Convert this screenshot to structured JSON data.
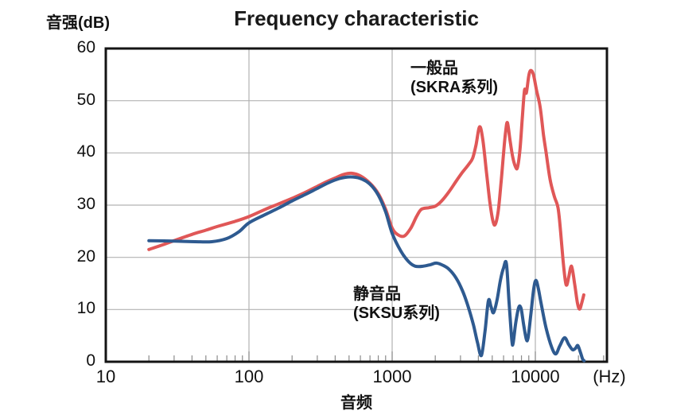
{
  "title": "Frequency characteristic",
  "y_axis_label": "音强(dB)",
  "x_axis_label": "音频",
  "x_unit_label": "(Hz)",
  "series_labels": {
    "general_line1": "一般品",
    "general_line2": "(SKRA系列)",
    "silent_line1": "静音品",
    "silent_line2": "(SKSU系列)"
  },
  "colors": {
    "general": "#e05757",
    "silent": "#2e5a90",
    "grid": "#b2b2b2",
    "tick": "#8c8c8c",
    "axis": "#141414",
    "text": "#111111"
  },
  "chart_data": {
    "type": "line",
    "title": "Frequency characteristic",
    "xlabel": "音频 (Hz)",
    "ylabel": "音强(dB)",
    "x_scale": "log",
    "xlim": [
      10,
      31623
    ],
    "ylim": [
      0,
      60
    ],
    "y_ticks": [
      0,
      10,
      20,
      30,
      40,
      50,
      60
    ],
    "x_ticks": [
      10,
      100,
      1000,
      10000
    ],
    "grid": true,
    "legend_position": "inline-annotations",
    "series": [
      {
        "name": "一般品 (SKRA系列)",
        "color_key": "general",
        "points": [
          [
            20,
            21.5
          ],
          [
            25,
            22.4
          ],
          [
            30,
            23.2
          ],
          [
            40,
            24.4
          ],
          [
            50,
            25.2
          ],
          [
            60,
            25.9
          ],
          [
            80,
            26.9
          ],
          [
            100,
            27.8
          ],
          [
            130,
            29.2
          ],
          [
            160,
            30.2
          ],
          [
            200,
            31.3
          ],
          [
            250,
            32.5
          ],
          [
            300,
            33.6
          ],
          [
            350,
            34.5
          ],
          [
            400,
            35.2
          ],
          [
            460,
            35.9
          ],
          [
            520,
            36.1
          ],
          [
            600,
            35.6
          ],
          [
            700,
            34.2
          ],
          [
            800,
            32.2
          ],
          [
            900,
            29.2
          ],
          [
            1000,
            25.6
          ],
          [
            1100,
            24.3
          ],
          [
            1220,
            24.1
          ],
          [
            1350,
            25.6
          ],
          [
            1480,
            27.8
          ],
          [
            1600,
            29.2
          ],
          [
            1800,
            29.5
          ],
          [
            2000,
            29.8
          ],
          [
            2200,
            30.7
          ],
          [
            2500,
            32.6
          ],
          [
            2800,
            34.6
          ],
          [
            3100,
            36.3
          ],
          [
            3400,
            37.7
          ],
          [
            3650,
            39.0
          ],
          [
            3850,
            41.5
          ],
          [
            4080,
            45.0
          ],
          [
            4300,
            42.5
          ],
          [
            4550,
            36.5
          ],
          [
            4800,
            30.8
          ],
          [
            5050,
            27.0
          ],
          [
            5250,
            26.3
          ],
          [
            5500,
            28.8
          ],
          [
            5750,
            34.0
          ],
          [
            6000,
            40.0
          ],
          [
            6200,
            44.0
          ],
          [
            6380,
            45.8
          ],
          [
            6650,
            42.5
          ],
          [
            6950,
            39.2
          ],
          [
            7250,
            37.4
          ],
          [
            7500,
            37.2
          ],
          [
            7800,
            40.5
          ],
          [
            8100,
            46.5
          ],
          [
            8400,
            52.0
          ],
          [
            8650,
            51.5
          ],
          [
            9000,
            54.8
          ],
          [
            9300,
            55.8
          ],
          [
            9700,
            55.0
          ],
          [
            10200,
            52.0
          ],
          [
            10800,
            48.8
          ],
          [
            11400,
            43.5
          ],
          [
            11900,
            40.0
          ],
          [
            12700,
            34.8
          ],
          [
            13600,
            31.6
          ],
          [
            14400,
            29.5
          ],
          [
            15000,
            25.0
          ],
          [
            15600,
            19.5
          ],
          [
            16200,
            15.5
          ],
          [
            16600,
            14.7
          ],
          [
            17100,
            16.2
          ],
          [
            17900,
            18.3
          ],
          [
            18800,
            15.0
          ],
          [
            19700,
            11.2
          ],
          [
            20400,
            10.1
          ],
          [
            21100,
            11.3
          ],
          [
            21800,
            12.8
          ]
        ]
      },
      {
        "name": "静音品 (SKSU系列)",
        "color_key": "silent",
        "points": [
          [
            20,
            23.2
          ],
          [
            30,
            23.1
          ],
          [
            42,
            23.0
          ],
          [
            55,
            23.0
          ],
          [
            70,
            23.6
          ],
          [
            85,
            24.9
          ],
          [
            100,
            26.6
          ],
          [
            130,
            28.2
          ],
          [
            160,
            29.4
          ],
          [
            200,
            30.8
          ],
          [
            250,
            32.1
          ],
          [
            300,
            33.2
          ],
          [
            360,
            34.3
          ],
          [
            430,
            35.1
          ],
          [
            510,
            35.4
          ],
          [
            600,
            35.1
          ],
          [
            700,
            34.0
          ],
          [
            800,
            31.9
          ],
          [
            900,
            28.7
          ],
          [
            1000,
            24.6
          ],
          [
            1150,
            21.2
          ],
          [
            1300,
            19.2
          ],
          [
            1450,
            18.3
          ],
          [
            1650,
            18.3
          ],
          [
            1850,
            18.6
          ],
          [
            2030,
            18.9
          ],
          [
            2250,
            18.5
          ],
          [
            2500,
            17.7
          ],
          [
            2800,
            16.0
          ],
          [
            3100,
            13.6
          ],
          [
            3400,
            10.5
          ],
          [
            3700,
            7.0
          ],
          [
            3950,
            3.6
          ],
          [
            4200,
            1.2
          ],
          [
            4450,
            5.8
          ],
          [
            4700,
            11.7
          ],
          [
            4900,
            10.6
          ],
          [
            5100,
            9.4
          ],
          [
            5400,
            11.8
          ],
          [
            5700,
            15.6
          ],
          [
            6000,
            18.0
          ],
          [
            6280,
            18.8
          ],
          [
            6550,
            11.5
          ],
          [
            6850,
            4.2
          ],
          [
            7000,
            3.6
          ],
          [
            7300,
            7.5
          ],
          [
            7650,
            10.4
          ],
          [
            7950,
            10.2
          ],
          [
            8300,
            7.0
          ],
          [
            8650,
            4.3
          ],
          [
            8900,
            4.6
          ],
          [
            9300,
            9.0
          ],
          [
            9750,
            14.0
          ],
          [
            10100,
            15.6
          ],
          [
            10500,
            14.0
          ],
          [
            11000,
            11.0
          ],
          [
            11900,
            6.4
          ],
          [
            13000,
            2.8
          ],
          [
            13900,
            1.5
          ],
          [
            14800,
            3.0
          ],
          [
            16000,
            4.6
          ],
          [
            17100,
            3.3
          ],
          [
            18200,
            2.3
          ],
          [
            19100,
            2.6
          ],
          [
            19800,
            3.1
          ],
          [
            20700,
            1.7
          ],
          [
            21400,
            0.5
          ],
          [
            21900,
            0.2
          ]
        ]
      }
    ]
  }
}
